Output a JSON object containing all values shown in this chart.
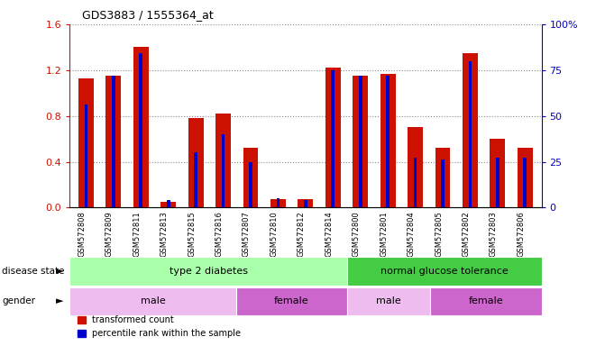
{
  "title": "GDS3883 / 1555364_at",
  "samples": [
    "GSM572808",
    "GSM572809",
    "GSM572811",
    "GSM572813",
    "GSM572815",
    "GSM572816",
    "GSM572807",
    "GSM572810",
    "GSM572812",
    "GSM572814",
    "GSM572800",
    "GSM572801",
    "GSM572804",
    "GSM572805",
    "GSM572802",
    "GSM572803",
    "GSM572806"
  ],
  "transformed_count": [
    1.13,
    1.15,
    1.4,
    0.05,
    0.78,
    0.82,
    0.52,
    0.07,
    0.07,
    1.22,
    1.15,
    1.17,
    0.7,
    0.52,
    1.35,
    0.6,
    0.52
  ],
  "percentile_rank_pct": [
    56,
    72,
    84,
    4,
    30,
    40,
    25,
    5,
    4,
    75,
    72,
    72,
    27,
    26,
    80,
    27,
    27
  ],
  "ylim_left": [
    0,
    1.6
  ],
  "ylim_right": [
    0,
    100
  ],
  "yticks_left": [
    0,
    0.4,
    0.8,
    1.2,
    1.6
  ],
  "yticks_right": [
    0,
    25,
    50,
    75,
    100
  ],
  "red_color": "#CC1100",
  "blue_color": "#0000CC",
  "disease_state_groups": [
    {
      "label": "type 2 diabetes",
      "start": 0,
      "end": 10,
      "color": "#AAFFAA"
    },
    {
      "label": "normal glucose tolerance",
      "start": 10,
      "end": 17,
      "color": "#44CC44"
    }
  ],
  "gender_groups": [
    {
      "label": "male",
      "start": 0,
      "end": 6,
      "color": "#EEBCEE"
    },
    {
      "label": "female",
      "start": 6,
      "end": 10,
      "color": "#CC66CC"
    },
    {
      "label": "male",
      "start": 10,
      "end": 13,
      "color": "#EEBCEE"
    },
    {
      "label": "female",
      "start": 13,
      "end": 17,
      "color": "#CC66CC"
    }
  ],
  "tick_label_area_color": "#CCCCCC",
  "bg_color": "#FFFFFF"
}
